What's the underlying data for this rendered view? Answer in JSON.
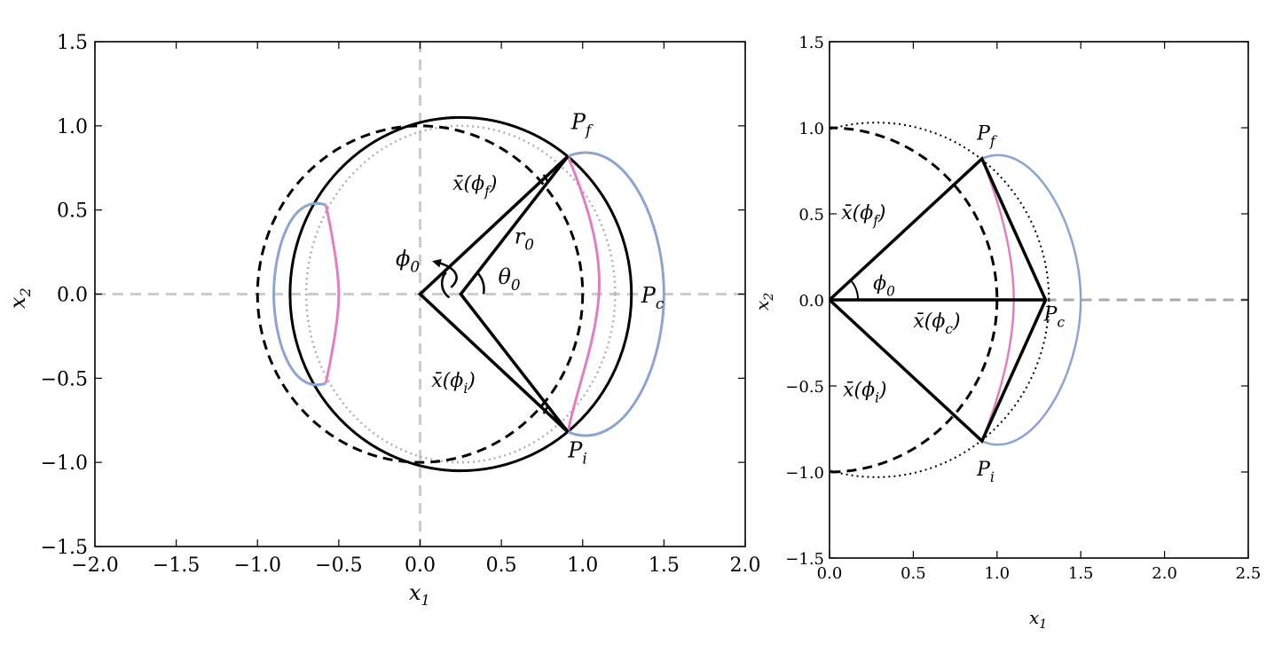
{
  "chart_data": [
    {
      "type": "diagram",
      "xlabel": "x",
      "xlabel_sub": "1",
      "ylabel": "x",
      "ylabel_sub": "2",
      "xlim": [
        -2.0,
        2.0
      ],
      "ylim": [
        -1.5,
        1.5
      ],
      "xticks": [
        -2.0,
        -1.5,
        -1.0,
        -0.5,
        0.0,
        0.5,
        1.0,
        1.5,
        2.0
      ],
      "yticks": [
        -1.5,
        -1.0,
        -0.5,
        0.0,
        0.5,
        1.0,
        1.5
      ],
      "xtick_labels": [
        "−2.0",
        "−1.5",
        "−1.0",
        "−0.5",
        "0.0",
        "0.5",
        "1.0",
        "1.5",
        "2.0"
      ],
      "ytick_labels": [
        "−1.5",
        "−1.0",
        "−0.5",
        "0.0",
        "0.5",
        "1.0",
        "1.5"
      ],
      "grid": false,
      "geometry": {
        "unit_circle": {
          "center": [
            0,
            0
          ],
          "radius": 1.0,
          "style": "dashed"
        },
        "shifted_circle": {
          "center": [
            0.25,
            0
          ],
          "radius": 1.05,
          "style": "solid"
        },
        "dotted_circle": {
          "center": [
            0.25,
            0
          ],
          "radius": 0.95,
          "style": "dotted-gray"
        },
        "points": {
          "origin": [
            0,
            0
          ],
          "pivot": [
            0.25,
            0
          ],
          "P_f": [
            0.91,
            0.82
          ],
          "P_i": [
            0.91,
            -0.82
          ],
          "P_c": [
            1.5,
            0
          ]
        }
      },
      "labels": {
        "P_f": {
          "main": "P",
          "sub": "f"
        },
        "P_i": {
          "main": "P",
          "sub": "i"
        },
        "P_c": {
          "main": "P",
          "sub": "c"
        },
        "r0": {
          "main": "r",
          "sub": "0"
        },
        "theta0": {
          "main": "θ",
          "sub": "0"
        },
        "phi0": {
          "main": "ϕ",
          "sub": "0"
        },
        "xbar_phi_f": {
          "pre": "x̄(ϕ",
          "sub": "f",
          "post": ")"
        },
        "xbar_phi_i": {
          "pre": "x̄(ϕ",
          "sub": "i",
          "post": ")"
        }
      }
    },
    {
      "type": "diagram",
      "xlabel": "x",
      "xlabel_sub": "1",
      "ylabel": "x",
      "ylabel_sub": "2",
      "xlim": [
        0.0,
        2.5
      ],
      "ylim": [
        -1.5,
        1.5
      ],
      "xticks": [
        0.0,
        0.5,
        1.0,
        1.5,
        2.0,
        2.5
      ],
      "yticks": [
        -1.5,
        -1.0,
        -0.5,
        0.0,
        0.5,
        1.0,
        1.5
      ],
      "xtick_labels": [
        "0.0",
        "0.5",
        "1.0",
        "1.5",
        "2.0",
        "2.5"
      ],
      "ytick_labels": [
        "−1.5",
        "−1.0",
        "−0.5",
        "0.0",
        "0.5",
        "1.0",
        "1.5"
      ],
      "grid": false,
      "geometry": {
        "unit_circle": {
          "center": [
            0,
            0
          ],
          "radius": 1.0,
          "style": "dashed"
        },
        "dotted_circle": {
          "center": [
            0.28,
            0
          ],
          "radius": 1.03,
          "style": "dotted"
        },
        "points": {
          "origin": [
            0,
            0
          ],
          "P_f": [
            0.91,
            0.82
          ],
          "P_i": [
            0.91,
            -0.82
          ],
          "P_c": [
            1.29,
            0
          ]
        }
      },
      "labels": {
        "P_f": {
          "main": "P",
          "sub": "f"
        },
        "P_i": {
          "main": "P",
          "sub": "i"
        },
        "P_c": {
          "main": "P",
          "sub": "c"
        },
        "phi0": {
          "main": "ϕ",
          "sub": "0"
        },
        "xbar_phi_f": {
          "pre": "x̄(ϕ",
          "sub": "f",
          "post": ")"
        },
        "xbar_phi_i": {
          "pre": "x̄(ϕ",
          "sub": "i",
          "post": ")"
        },
        "xbar_phi_c": {
          "pre": "x̄(ϕ",
          "sub": "c",
          "post": ")"
        }
      }
    }
  ],
  "colors": {
    "blue_curve": "#8fa3cf",
    "pink_curve": "#e07fc0",
    "gray_dashed": "#cccccc",
    "gray_dotted": "#b0b0b0",
    "black": "#000000"
  }
}
